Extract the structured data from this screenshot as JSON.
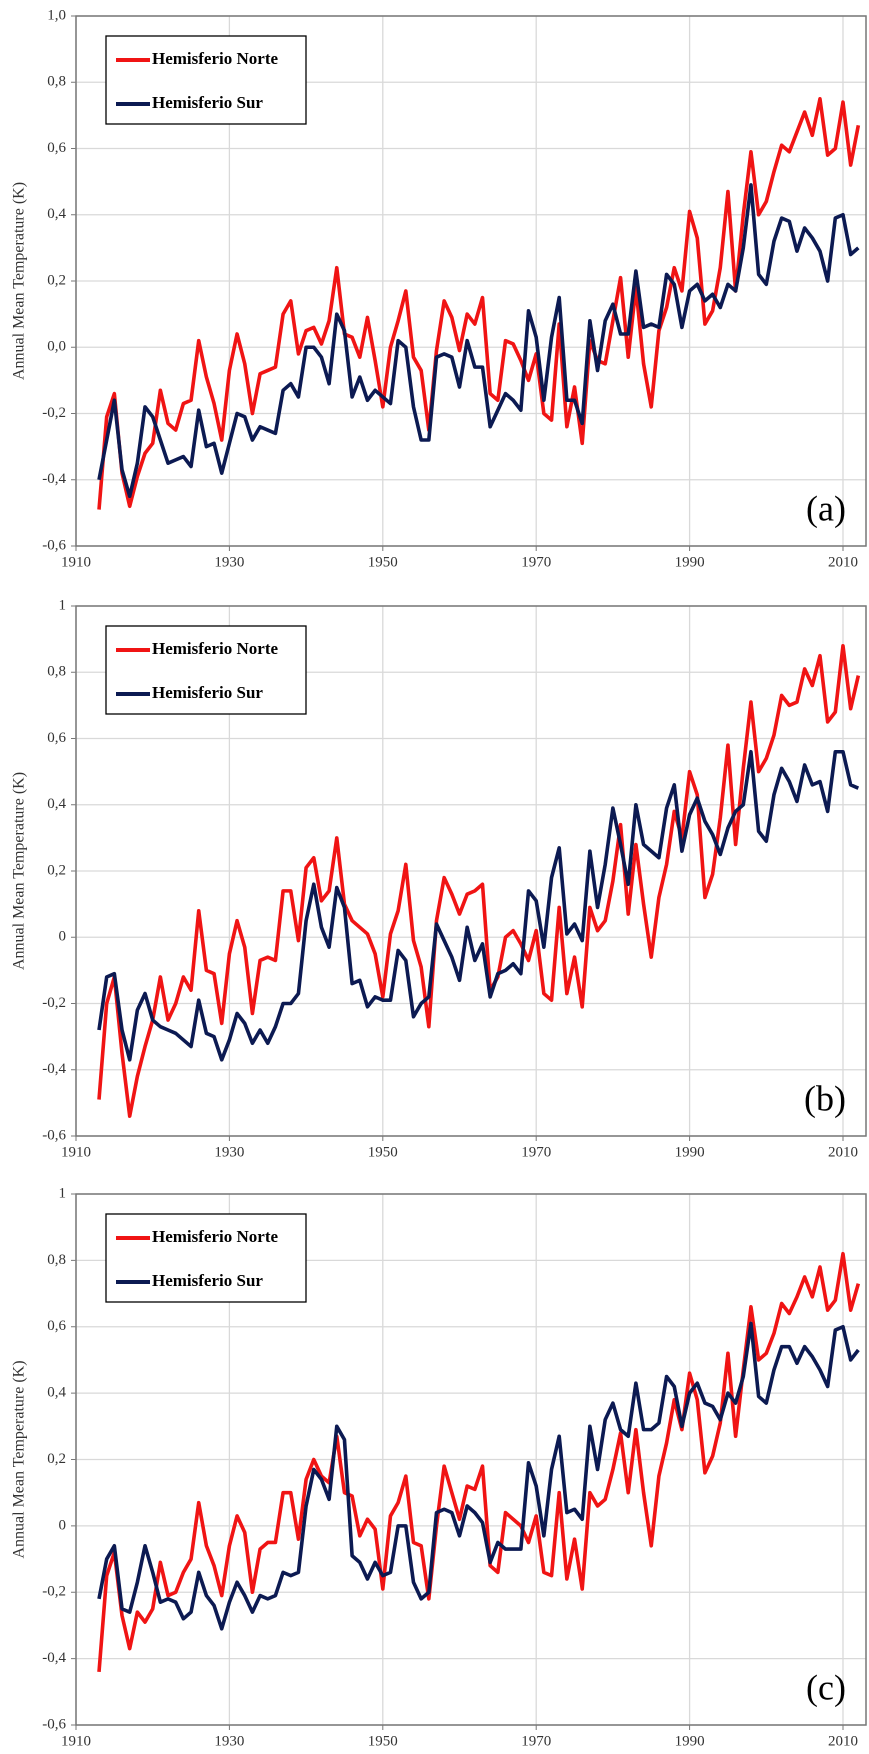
{
  "chart_data": [
    {
      "type": "line",
      "label": "(a)",
      "ylabel": "Annual Mean Temperature (K)",
      "x": [
        1913,
        1914,
        1915,
        1916,
        1917,
        1918,
        1919,
        1920,
        1921,
        1922,
        1923,
        1924,
        1925,
        1926,
        1927,
        1928,
        1929,
        1930,
        1931,
        1932,
        1933,
        1934,
        1935,
        1936,
        1937,
        1938,
        1939,
        1940,
        1941,
        1942,
        1943,
        1944,
        1945,
        1946,
        1947,
        1948,
        1949,
        1950,
        1951,
        1952,
        1953,
        1954,
        1955,
        1956,
        1957,
        1958,
        1959,
        1960,
        1961,
        1962,
        1963,
        1964,
        1965,
        1966,
        1967,
        1968,
        1969,
        1970,
        1971,
        1972,
        1973,
        1974,
        1975,
        1976,
        1977,
        1978,
        1979,
        1980,
        1981,
        1982,
        1983,
        1984,
        1985,
        1986,
        1987,
        1988,
        1989,
        1990,
        1991,
        1992,
        1993,
        1994,
        1995,
        1996,
        1997,
        1998,
        1999,
        2000,
        2001,
        2002,
        2003,
        2004,
        2005,
        2006,
        2007,
        2008,
        2009,
        2010,
        2011,
        2012
      ],
      "series": [
        {
          "name": "Hemisferio Norte",
          "color": "#f01414",
          "values": [
            -0.49,
            -0.21,
            -0.14,
            -0.38,
            -0.48,
            -0.39,
            -0.32,
            -0.29,
            -0.13,
            -0.23,
            -0.25,
            -0.17,
            -0.16,
            0.02,
            -0.09,
            -0.17,
            -0.28,
            -0.07,
            0.04,
            -0.05,
            -0.2,
            -0.08,
            -0.07,
            -0.06,
            0.1,
            0.14,
            -0.02,
            0.05,
            0.06,
            0.01,
            0.08,
            0.24,
            0.04,
            0.03,
            -0.03,
            0.09,
            -0.04,
            -0.18,
            0.0,
            0.08,
            0.17,
            -0.03,
            -0.07,
            -0.25,
            -0.01,
            0.14,
            0.09,
            -0.01,
            0.1,
            0.07,
            0.15,
            -0.14,
            -0.16,
            0.02,
            0.01,
            -0.04,
            -0.1,
            -0.02,
            -0.2,
            -0.22,
            0.07,
            -0.24,
            -0.12,
            -0.29,
            0.02,
            -0.04,
            -0.05,
            0.08,
            0.21,
            -0.03,
            0.18,
            -0.05,
            -0.18,
            0.05,
            0.12,
            0.24,
            0.17,
            0.41,
            0.33,
            0.07,
            0.11,
            0.24,
            0.47,
            0.17,
            0.4,
            0.59,
            0.4,
            0.44,
            0.53,
            0.61,
            0.59,
            0.65,
            0.71,
            0.64,
            0.75,
            0.58,
            0.6,
            0.74,
            0.55,
            0.67
          ]
        },
        {
          "name": "Hemisferio Sur",
          "color": "#0c1a52",
          "values": [
            -0.4,
            -0.28,
            -0.16,
            -0.37,
            -0.45,
            -0.35,
            -0.18,
            -0.21,
            -0.28,
            -0.35,
            -0.34,
            -0.33,
            -0.36,
            -0.19,
            -0.3,
            -0.29,
            -0.38,
            -0.29,
            -0.2,
            -0.21,
            -0.28,
            -0.24,
            -0.25,
            -0.26,
            -0.13,
            -0.11,
            -0.15,
            0.0,
            0.0,
            -0.03,
            -0.11,
            0.1,
            0.05,
            -0.15,
            -0.09,
            -0.16,
            -0.13,
            -0.15,
            -0.17,
            0.02,
            0.0,
            -0.18,
            -0.28,
            -0.28,
            -0.03,
            -0.02,
            -0.03,
            -0.12,
            0.02,
            -0.06,
            -0.06,
            -0.24,
            -0.19,
            -0.14,
            -0.16,
            -0.19,
            0.11,
            0.03,
            -0.16,
            0.03,
            0.15,
            -0.16,
            -0.16,
            -0.23,
            0.08,
            -0.07,
            0.08,
            0.13,
            0.04,
            0.04,
            0.23,
            0.06,
            0.07,
            0.06,
            0.22,
            0.19,
            0.06,
            0.17,
            0.19,
            0.14,
            0.16,
            0.12,
            0.19,
            0.17,
            0.3,
            0.49,
            0.22,
            0.19,
            0.32,
            0.39,
            0.38,
            0.29,
            0.36,
            0.33,
            0.29,
            0.2,
            0.39,
            0.4,
            0.28,
            0.3
          ]
        }
      ],
      "xlim": [
        1910,
        2013
      ],
      "ylim": [
        -0.6,
        1.0
      ],
      "xticks": [
        1910,
        1930,
        1950,
        1970,
        1990,
        2010
      ],
      "yticks": [
        {
          "value": 1.0,
          "label": "1,0"
        },
        {
          "value": 0.8,
          "label": "0,8"
        },
        {
          "value": 0.6,
          "label": "0,6"
        },
        {
          "value": 0.4,
          "label": "0,4"
        },
        {
          "value": 0.2,
          "label": "0,2"
        },
        {
          "value": 0,
          "label": "0,0"
        },
        {
          "value": -0.2,
          "label": "-0,2"
        },
        {
          "value": -0.4,
          "label": "-0,4"
        },
        {
          "value": -0.6,
          "label": "-0,6"
        }
      ],
      "grid": true,
      "legend": "upper left"
    },
    {
      "type": "line",
      "label": "(b)",
      "ylabel": "Annual Mean Temperature (K)",
      "x": [
        1913,
        1914,
        1915,
        1916,
        1917,
        1918,
        1919,
        1920,
        1921,
        1922,
        1923,
        1924,
        1925,
        1926,
        1927,
        1928,
        1929,
        1930,
        1931,
        1932,
        1933,
        1934,
        1935,
        1936,
        1937,
        1938,
        1939,
        1940,
        1941,
        1942,
        1943,
        1944,
        1945,
        1946,
        1947,
        1948,
        1949,
        1950,
        1951,
        1952,
        1953,
        1954,
        1955,
        1956,
        1957,
        1958,
        1959,
        1960,
        1961,
        1962,
        1963,
        1964,
        1965,
        1966,
        1967,
        1968,
        1969,
        1970,
        1971,
        1972,
        1973,
        1974,
        1975,
        1976,
        1977,
        1978,
        1979,
        1980,
        1981,
        1982,
        1983,
        1984,
        1985,
        1986,
        1987,
        1988,
        1989,
        1990,
        1991,
        1992,
        1993,
        1994,
        1995,
        1996,
        1997,
        1998,
        1999,
        2000,
        2001,
        2002,
        2003,
        2004,
        2005,
        2006,
        2007,
        2008,
        2009,
        2010,
        2011,
        2012
      ],
      "series": [
        {
          "name": "Hemisferio Norte",
          "color": "#f01414",
          "values": [
            -0.49,
            -0.2,
            -0.12,
            -0.35,
            -0.54,
            -0.42,
            -0.33,
            -0.25,
            -0.12,
            -0.25,
            -0.2,
            -0.12,
            -0.16,
            0.08,
            -0.1,
            -0.11,
            -0.26,
            -0.05,
            0.05,
            -0.03,
            -0.23,
            -0.07,
            -0.06,
            -0.07,
            0.14,
            0.14,
            -0.01,
            0.21,
            0.24,
            0.11,
            0.14,
            0.3,
            0.1,
            0.05,
            0.03,
            0.01,
            -0.05,
            -0.18,
            0.01,
            0.08,
            0.22,
            -0.01,
            -0.09,
            -0.27,
            0.05,
            0.18,
            0.13,
            0.07,
            0.13,
            0.14,
            0.16,
            -0.16,
            -0.12,
            0.0,
            0.02,
            -0.02,
            -0.07,
            0.02,
            -0.17,
            -0.19,
            0.09,
            -0.17,
            -0.06,
            -0.21,
            0.09,
            0.02,
            0.05,
            0.17,
            0.34,
            0.07,
            0.28,
            0.1,
            -0.06,
            0.12,
            0.22,
            0.38,
            0.3,
            0.5,
            0.43,
            0.12,
            0.19,
            0.36,
            0.58,
            0.28,
            0.51,
            0.71,
            0.5,
            0.54,
            0.61,
            0.73,
            0.7,
            0.71,
            0.81,
            0.76,
            0.85,
            0.65,
            0.68,
            0.88,
            0.69,
            0.79
          ]
        },
        {
          "name": "Hemisferio Sur",
          "color": "#0c1a52",
          "values": [
            -0.28,
            -0.12,
            -0.11,
            -0.28,
            -0.37,
            -0.22,
            -0.17,
            -0.25,
            -0.27,
            -0.28,
            -0.29,
            -0.31,
            -0.33,
            -0.19,
            -0.29,
            -0.3,
            -0.37,
            -0.31,
            -0.23,
            -0.26,
            -0.32,
            -0.28,
            -0.32,
            -0.27,
            -0.2,
            -0.2,
            -0.17,
            0.05,
            0.16,
            0.03,
            -0.03,
            0.15,
            0.09,
            -0.14,
            -0.13,
            -0.21,
            -0.18,
            -0.19,
            -0.19,
            -0.04,
            -0.07,
            -0.24,
            -0.2,
            -0.18,
            0.04,
            -0.01,
            -0.06,
            -0.13,
            0.03,
            -0.07,
            -0.02,
            -0.18,
            -0.11,
            -0.1,
            -0.08,
            -0.11,
            0.14,
            0.11,
            -0.03,
            0.18,
            0.27,
            0.01,
            0.04,
            -0.01,
            0.26,
            0.09,
            0.22,
            0.39,
            0.28,
            0.16,
            0.4,
            0.28,
            0.26,
            0.24,
            0.39,
            0.46,
            0.26,
            0.37,
            0.42,
            0.35,
            0.31,
            0.25,
            0.33,
            0.38,
            0.4,
            0.56,
            0.32,
            0.29,
            0.43,
            0.51,
            0.47,
            0.41,
            0.52,
            0.46,
            0.47,
            0.38,
            0.56,
            0.56,
            0.46,
            0.45
          ]
        }
      ],
      "xlim": [
        1910,
        2013
      ],
      "ylim": [
        -0.6,
        1
      ],
      "xticks": [
        1910,
        1930,
        1950,
        1970,
        1990,
        2010
      ],
      "yticks": [
        1,
        {
          "value": 0.8,
          "label": "0,8"
        },
        {
          "value": 0.6,
          "label": "0,6"
        },
        {
          "value": 0.4,
          "label": "0,4"
        },
        {
          "value": 0.2,
          "label": "0,2"
        },
        0,
        {
          "value": -0.2,
          "label": "-0,2"
        },
        {
          "value": -0.4,
          "label": "-0,4"
        },
        {
          "value": -0.6,
          "label": "-0,6"
        }
      ],
      "grid": true,
      "legend": "upper left"
    },
    {
      "type": "line",
      "label": "(c)",
      "ylabel": "Annual Mean Temperature (K)",
      "x": [
        1913,
        1914,
        1915,
        1916,
        1917,
        1918,
        1919,
        1920,
        1921,
        1922,
        1923,
        1924,
        1925,
        1926,
        1927,
        1928,
        1929,
        1930,
        1931,
        1932,
        1933,
        1934,
        1935,
        1936,
        1937,
        1938,
        1939,
        1940,
        1941,
        1942,
        1943,
        1944,
        1945,
        1946,
        1947,
        1948,
        1949,
        1950,
        1951,
        1952,
        1953,
        1954,
        1955,
        1956,
        1957,
        1958,
        1959,
        1960,
        1961,
        1962,
        1963,
        1964,
        1965,
        1966,
        1967,
        1968,
        1969,
        1970,
        1971,
        1972,
        1973,
        1974,
        1975,
        1976,
        1977,
        1978,
        1979,
        1980,
        1981,
        1982,
        1983,
        1984,
        1985,
        1986,
        1987,
        1988,
        1989,
        1990,
        1991,
        1992,
        1993,
        1994,
        1995,
        1996,
        1997,
        1998,
        1999,
        2000,
        2001,
        2002,
        2003,
        2004,
        2005,
        2006,
        2007,
        2008,
        2009,
        2010,
        2011,
        2012
      ],
      "series": [
        {
          "name": "Hemisferio Norte",
          "color": "#f01414",
          "values": [
            -0.44,
            -0.15,
            -0.08,
            -0.27,
            -0.37,
            -0.26,
            -0.29,
            -0.25,
            -0.11,
            -0.21,
            -0.2,
            -0.14,
            -0.1,
            0.07,
            -0.06,
            -0.12,
            -0.21,
            -0.06,
            0.03,
            -0.02,
            -0.2,
            -0.07,
            -0.05,
            -0.05,
            0.1,
            0.1,
            -0.04,
            0.14,
            0.2,
            0.15,
            0.13,
            0.27,
            0.1,
            0.09,
            -0.03,
            0.02,
            -0.01,
            -0.19,
            0.03,
            0.07,
            0.15,
            -0.05,
            -0.06,
            -0.22,
            0.0,
            0.18,
            0.1,
            0.02,
            0.12,
            0.11,
            0.18,
            -0.12,
            -0.14,
            0.04,
            0.02,
            0.0,
            -0.05,
            0.03,
            -0.14,
            -0.15,
            0.1,
            -0.16,
            -0.04,
            -0.19,
            0.1,
            0.06,
            0.08,
            0.17,
            0.28,
            0.1,
            0.29,
            0.1,
            -0.06,
            0.15,
            0.25,
            0.38,
            0.29,
            0.46,
            0.38,
            0.16,
            0.21,
            0.31,
            0.52,
            0.27,
            0.47,
            0.66,
            0.5,
            0.52,
            0.58,
            0.67,
            0.64,
            0.69,
            0.75,
            0.69,
            0.78,
            0.65,
            0.68,
            0.82,
            0.65,
            0.73
          ]
        },
        {
          "name": "Hemisferio Sur",
          "color": "#0c1a52",
          "values": [
            -0.22,
            -0.1,
            -0.06,
            -0.25,
            -0.26,
            -0.17,
            -0.06,
            -0.14,
            -0.23,
            -0.22,
            -0.23,
            -0.28,
            -0.26,
            -0.14,
            -0.21,
            -0.24,
            -0.31,
            -0.23,
            -0.17,
            -0.21,
            -0.26,
            -0.21,
            -0.22,
            -0.21,
            -0.14,
            -0.15,
            -0.14,
            0.06,
            0.17,
            0.14,
            0.08,
            0.3,
            0.26,
            -0.09,
            -0.11,
            -0.16,
            -0.11,
            -0.15,
            -0.14,
            0.0,
            0.0,
            -0.17,
            -0.22,
            -0.2,
            0.04,
            0.05,
            0.04,
            -0.03,
            0.06,
            0.04,
            0.01,
            -0.11,
            -0.05,
            -0.07,
            -0.07,
            -0.07,
            0.19,
            0.12,
            -0.03,
            0.17,
            0.27,
            0.04,
            0.05,
            0.02,
            0.3,
            0.17,
            0.32,
            0.37,
            0.29,
            0.27,
            0.43,
            0.29,
            0.29,
            0.31,
            0.45,
            0.42,
            0.3,
            0.4,
            0.43,
            0.37,
            0.36,
            0.32,
            0.4,
            0.37,
            0.45,
            0.61,
            0.39,
            0.37,
            0.47,
            0.54,
            0.54,
            0.49,
            0.54,
            0.51,
            0.47,
            0.42,
            0.59,
            0.6,
            0.5,
            0.53
          ]
        }
      ],
      "xlim": [
        1910,
        2013
      ],
      "ylim": [
        -0.6,
        1
      ],
      "xticks": [
        1910,
        1930,
        1950,
        1970,
        1990,
        2010
      ],
      "yticks": [
        1,
        {
          "value": 0.8,
          "label": "0,8"
        },
        {
          "value": 0.6,
          "label": "0,6"
        },
        {
          "value": 0.4,
          "label": "0,4"
        },
        {
          "value": 0.2,
          "label": "0,2"
        },
        0,
        {
          "value": -0.2,
          "label": "-0,2"
        },
        {
          "value": -0.4,
          "label": "-0,4"
        },
        {
          "value": -0.6,
          "label": "-0,6"
        }
      ],
      "grid": true,
      "legend": "upper left"
    }
  ]
}
